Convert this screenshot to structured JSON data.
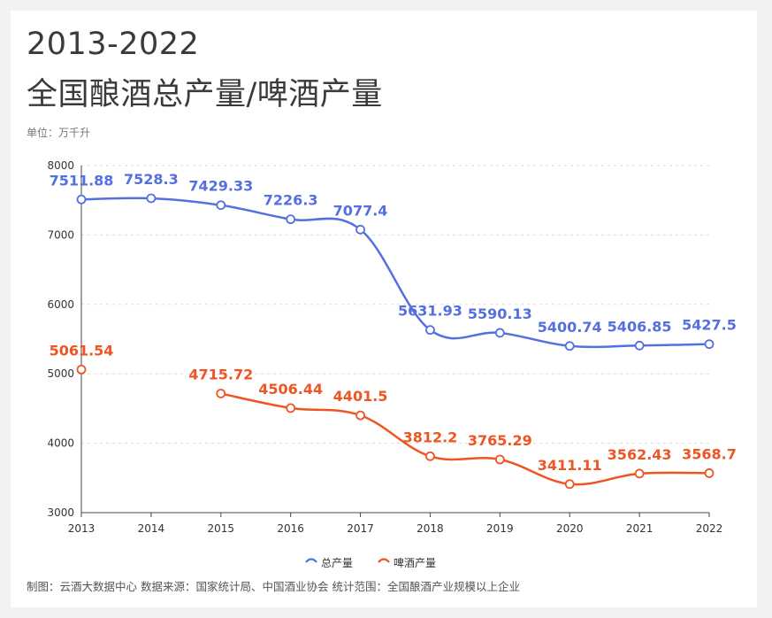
{
  "header": {
    "title_line1": "2013-2022",
    "title_line2": "全国酿酒总产量/啤酒产量",
    "unit": "单位：万千升"
  },
  "footer": {
    "text": "制图：云酒大数据中心    数据来源：国家统计局、中国酒业协会    统计范围：全国酿酒产业规模以上企业"
  },
  "colors": {
    "total": "#5470e0",
    "beer": "#ee5522"
  },
  "chart_data": {
    "type": "line",
    "title": "2013-2022 全国酿酒总产量/啤酒产量",
    "ylabel": "单位：万千升",
    "categories": [
      "2013",
      "2014",
      "2015",
      "2016",
      "2017",
      "2018",
      "2019",
      "2020",
      "2021",
      "2022"
    ],
    "ylim": [
      3000,
      8000
    ],
    "yticks": [
      3000,
      4000,
      5000,
      6000,
      7000,
      8000
    ],
    "grid": true,
    "legend_position": "bottom",
    "series": [
      {
        "name": "总产量",
        "values": [
          7511.88,
          7528.3,
          7429.33,
          7226.3,
          7077.4,
          5631.93,
          5590.13,
          5400.74,
          5406.85,
          5427.5
        ],
        "labels": [
          "7511.88",
          "7528.3",
          "7429.33",
          "7226.3",
          "7077.4",
          "5631.93",
          "5590.13",
          "5400.74",
          "5406.85",
          "5427.5"
        ]
      },
      {
        "name": "啤酒产量",
        "values": [
          5061.54,
          null,
          4715.72,
          4506.44,
          4401.5,
          3812.2,
          3765.29,
          3411.11,
          3562.43,
          3568.7
        ],
        "labels": [
          "5061.54",
          "",
          "4715.72",
          "4506.44",
          "4401.5",
          "3812.2",
          "3765.29",
          "3411.11",
          "3562.43",
          "3568.7"
        ]
      }
    ]
  }
}
